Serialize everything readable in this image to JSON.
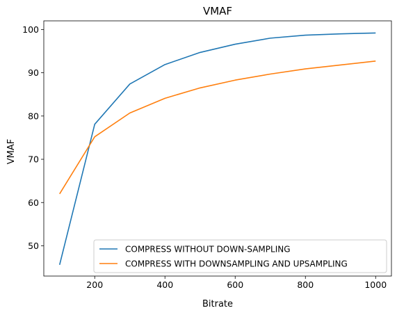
{
  "chart_data": {
    "type": "line",
    "title": "VMAF",
    "xlabel": "Bitrate",
    "ylabel": "VMAF",
    "xlim": [
      55,
      1045
    ],
    "ylim": [
      43.0,
      102.0
    ],
    "xticks": [
      200,
      400,
      600,
      800,
      1000
    ],
    "yticks": [
      50,
      60,
      70,
      80,
      90,
      100
    ],
    "grid": false,
    "legend_position": "lower-right",
    "x": [
      100,
      200,
      300,
      400,
      500,
      600,
      700,
      800,
      900,
      1000
    ],
    "series": [
      {
        "name": "COMPRESS WITHOUT DOWN-SAMPLING",
        "color": "#1f77b4",
        "values": [
          45.6,
          78.1,
          87.4,
          91.9,
          94.7,
          96.6,
          98.0,
          98.7,
          99.0,
          99.2
        ]
      },
      {
        "name": "COMPRESS WITH DOWNSAMPLING AND UPSAMPLING",
        "color": "#ff7f0e",
        "values": [
          62.0,
          75.2,
          80.7,
          84.1,
          86.5,
          88.3,
          89.7,
          90.9,
          91.8,
          92.7
        ]
      }
    ]
  }
}
